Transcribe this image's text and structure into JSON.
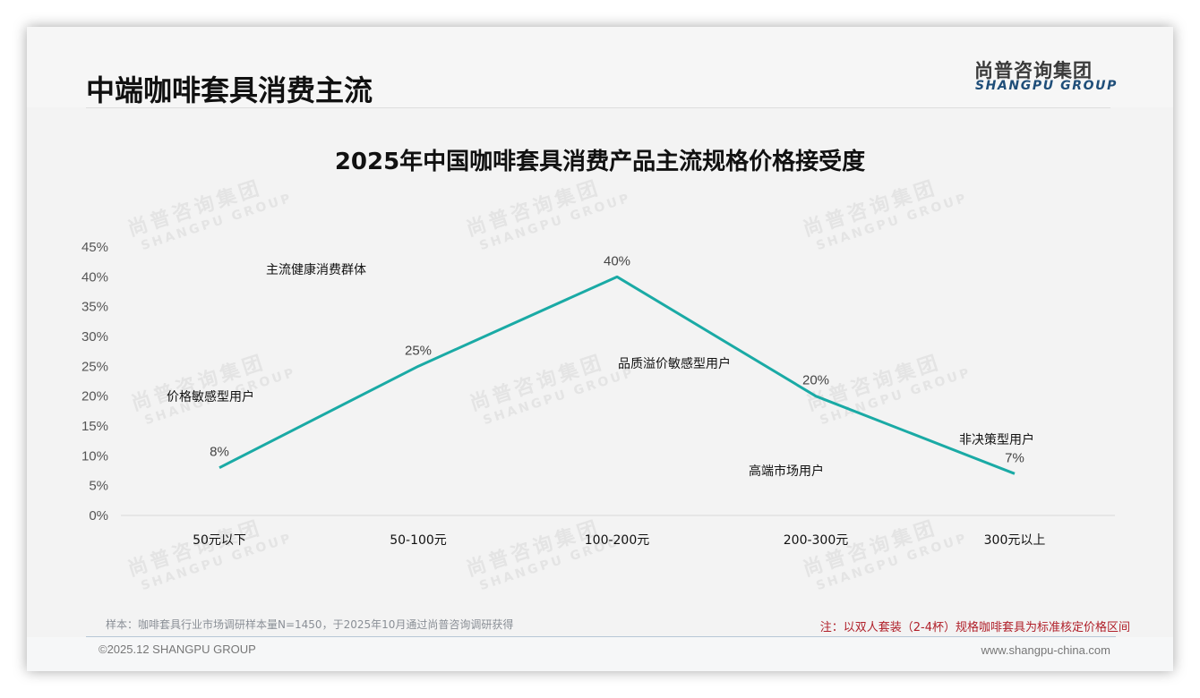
{
  "header": {
    "page_title": "中端咖啡套具消费主流",
    "logo_cn": "尚普咨询集团",
    "logo_en": "SHANGPU GROUP"
  },
  "watermark": {
    "cn": "尚普咨询集团",
    "en": "SHANGPU GROUP"
  },
  "chart_data": {
    "type": "line",
    "title": "2025年中国咖啡套具消费产品主流规格价格接受度",
    "xlabel": "",
    "ylabel": "",
    "categories": [
      "50元以下",
      "50-100元",
      "100-200元",
      "200-300元",
      "300元以上"
    ],
    "values": [
      8,
      25,
      40,
      20,
      7
    ],
    "value_labels": [
      "8%",
      "25%",
      "40%",
      "20%",
      "7%"
    ],
    "ylim": [
      0,
      45
    ],
    "yticks": [
      "0%",
      "5%",
      "10%",
      "15%",
      "20%",
      "25%",
      "30%",
      "35%",
      "40%",
      "45%"
    ],
    "grid": false,
    "legend": "none",
    "line_color": "#1aaaa5",
    "annotations": [
      {
        "text": "价格敏感型用户"
      },
      {
        "text": "主流健康消费群体"
      },
      {
        "text": "品质溢价敏感型用户"
      },
      {
        "text": "高端市场用户"
      },
      {
        "text": "非决策型用户"
      }
    ]
  },
  "footer": {
    "sample_note": "样本：咖啡套具行业市场调研样本量N=1450，于2025年10月通过尚普咨询调研获得",
    "red_note": "注：以双人套装（2-4杯）规格咖啡套具为标准核定价格区间",
    "red_color": "#b0202a",
    "copyright": "©2025.12 SHANGPU GROUP",
    "website": "www.shangpu-china.com"
  }
}
